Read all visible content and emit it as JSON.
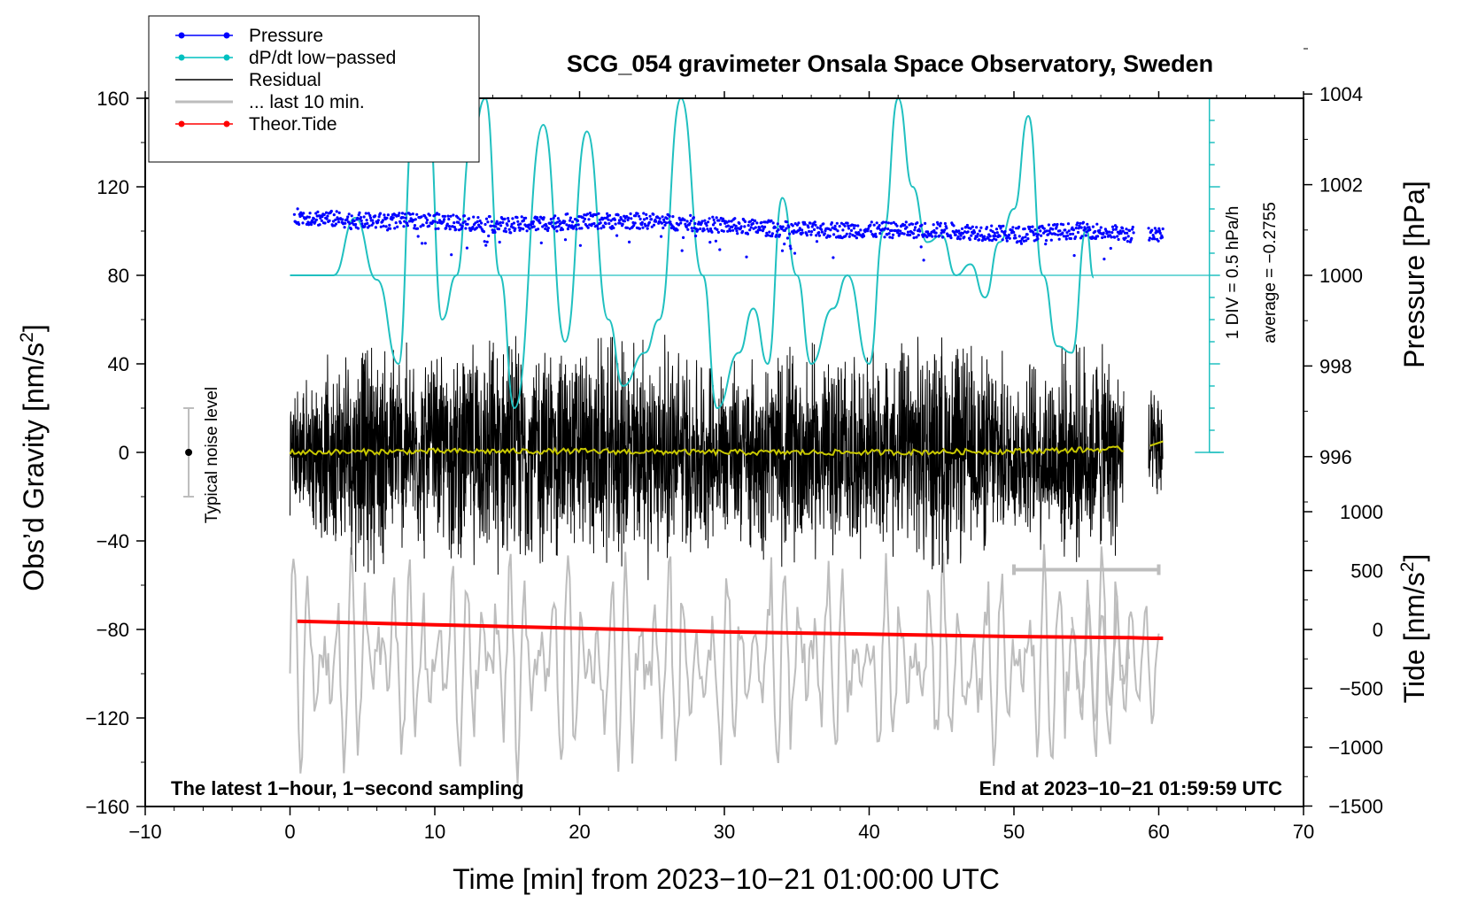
{
  "chart_data": {
    "type": "line",
    "title": "SCG_054 gravimeter Onsala Space Observatory, Sweden",
    "xlabel": "Time [min] from 2023−10−21 01:00:00 UTC",
    "ylabel": "Obs’d Gravity [nm/s²]",
    "ylabel_main": "Obs’d Gravity [nm/s",
    "ylabel_sup": "2",
    "ylabel_end": "]",
    "xlim": [
      -10,
      70
    ],
    "ylim": [
      -160,
      160
    ],
    "x_ticks": [
      -10,
      0,
      10,
      20,
      30,
      40,
      50,
      60,
      70
    ],
    "x_tick_labels": [
      "−10",
      "0",
      "10",
      "20",
      "30",
      "40",
      "50",
      "60",
      "70"
    ],
    "y_ticks": [
      -160,
      -120,
      -80,
      -40,
      0,
      40,
      80,
      120,
      160
    ],
    "y_tick_labels": [
      "−160",
      "−120",
      "−80",
      "−40",
      "0",
      "40",
      "80",
      "120",
      "160"
    ],
    "pressure_axis": {
      "label": "Pressure [hPa]",
      "ticks": [
        996,
        998,
        1000,
        1002,
        1004
      ],
      "tick_labels": [
        "996",
        "998",
        "1000",
        "1002",
        "1004"
      ]
    },
    "tide_axis": {
      "label_main": "Tide [nm/s",
      "label_sup": "2",
      "label_end": "]",
      "ticks": [
        -1500,
        -1000,
        -500,
        0,
        500,
        1000
      ],
      "tick_labels": [
        "−1500",
        "−1000",
        "−500",
        "0",
        "500",
        "1000"
      ]
    },
    "legend": {
      "placement": "top-left",
      "entries": [
        {
          "label": "Pressure",
          "color": "#0000ff",
          "marker": "dot"
        },
        {
          "label": "dP/dt low−passed",
          "color": "#00c0c0",
          "marker": "dot"
        },
        {
          "label": "Residual",
          "color": "#000000",
          "marker": "none"
        },
        {
          "label": "... last 10 min.",
          "color": "#bdbdbd",
          "marker": "none"
        },
        {
          "label": "Theor.Tide",
          "color": "#ff0000",
          "marker": "dot"
        }
      ]
    },
    "annotations": {
      "noise": "Typical noise level",
      "noise_range": [
        -20,
        20
      ],
      "dpdt_div": "1 DIV = 0.5 hPa/h",
      "dpdt_avg": "average = −0.2755",
      "footer_left": "The latest 1−hour, 1−second sampling",
      "footer_right": "End at 2023−10−21 01:59:59 UTC"
    },
    "series": [
      {
        "name": "Pressure",
        "axis": "pressure",
        "x_range": [
          0.3,
          60.3
        ],
        "values": [
          [
            0.5,
            1001.3
          ],
          [
            5,
            1001.2
          ],
          [
            10,
            1001.2
          ],
          [
            15,
            1001.1
          ],
          [
            20,
            1001.2
          ],
          [
            25,
            1001.2
          ],
          [
            30,
            1001.1
          ],
          [
            35,
            1001.0
          ],
          [
            40,
            1001.0
          ],
          [
            45,
            1001.0
          ],
          [
            50,
            1000.9
          ],
          [
            55,
            1001.0
          ],
          [
            58,
            1000.9
          ],
          [
            60.3,
            1000.9
          ]
        ]
      },
      {
        "name": "dP/dt low-passed",
        "axis": "gravity",
        "values": [
          [
            0,
            80
          ],
          [
            3,
            80
          ],
          [
            4.5,
            106
          ],
          [
            6,
            78
          ],
          [
            7.5,
            40
          ],
          [
            8.5,
            150
          ],
          [
            9.5,
            160
          ],
          [
            10.5,
            60
          ],
          [
            11.5,
            80
          ],
          [
            12.5,
            140
          ],
          [
            13.5,
            160
          ],
          [
            14.5,
            80
          ],
          [
            15.5,
            20
          ],
          [
            17.5,
            148
          ],
          [
            19,
            50
          ],
          [
            20.5,
            145
          ],
          [
            22,
            60
          ],
          [
            23,
            30
          ],
          [
            24.5,
            45
          ],
          [
            25.5,
            60
          ],
          [
            27,
            160
          ],
          [
            28.5,
            80
          ],
          [
            29.5,
            20
          ],
          [
            31,
            45
          ],
          [
            32,
            65
          ],
          [
            33,
            40
          ],
          [
            34,
            115
          ],
          [
            35,
            80
          ],
          [
            36,
            40
          ],
          [
            37.5,
            65
          ],
          [
            38.5,
            80
          ],
          [
            40,
            40
          ],
          [
            41,
            100
          ],
          [
            42,
            160
          ],
          [
            43,
            120
          ],
          [
            44,
            95
          ],
          [
            45,
            98
          ],
          [
            46,
            80
          ],
          [
            47,
            85
          ],
          [
            48,
            70
          ],
          [
            49,
            95
          ],
          [
            50,
            110
          ],
          [
            51,
            152
          ],
          [
            52,
            80
          ],
          [
            53,
            48
          ],
          [
            54,
            45
          ],
          [
            55,
            101
          ],
          [
            55.5,
            79
          ]
        ]
      },
      {
        "name": "Residual",
        "axis": "gravity",
        "x_range": [
          0,
          60.3
        ],
        "amplitude_env": [
          [
            0,
            30
          ],
          [
            5,
            60
          ],
          [
            10,
            50
          ],
          [
            15,
            60
          ],
          [
            20,
            55
          ],
          [
            25,
            60
          ],
          [
            30,
            45
          ],
          [
            35,
            55
          ],
          [
            40,
            50
          ],
          [
            45,
            60
          ],
          [
            50,
            45
          ],
          [
            55,
            55
          ],
          [
            57.5,
            50
          ],
          [
            58,
            0
          ],
          [
            59.5,
            35
          ],
          [
            60.3,
            35
          ]
        ]
      },
      {
        "name": "Residual smooth",
        "axis": "gravity",
        "color": "#c8c800",
        "values": [
          [
            0,
            0
          ],
          [
            10,
            0.5
          ],
          [
            20,
            0.5
          ],
          [
            30,
            0
          ],
          [
            40,
            0
          ],
          [
            50,
            0.5
          ],
          [
            57.5,
            1.5
          ],
          [
            60.3,
            4
          ]
        ]
      },
      {
        "name": "... last 10 min.",
        "axis": "gravity",
        "x_range": [
          0,
          60
        ],
        "center": -95,
        "amplitude": 45
      },
      {
        "name": "Theor.Tide",
        "axis": "tide",
        "values": [
          [
            0.5,
            70
          ],
          [
            10,
            40
          ],
          [
            20,
            10
          ],
          [
            30,
            -20
          ],
          [
            40,
            -40
          ],
          [
            50,
            -60
          ],
          [
            58,
            -70
          ],
          [
            59.5,
            -75
          ],
          [
            60.3,
            -75
          ]
        ]
      }
    ],
    "ten_min_marker": {
      "x_range": [
        50,
        60
      ],
      "y": -53
    }
  }
}
